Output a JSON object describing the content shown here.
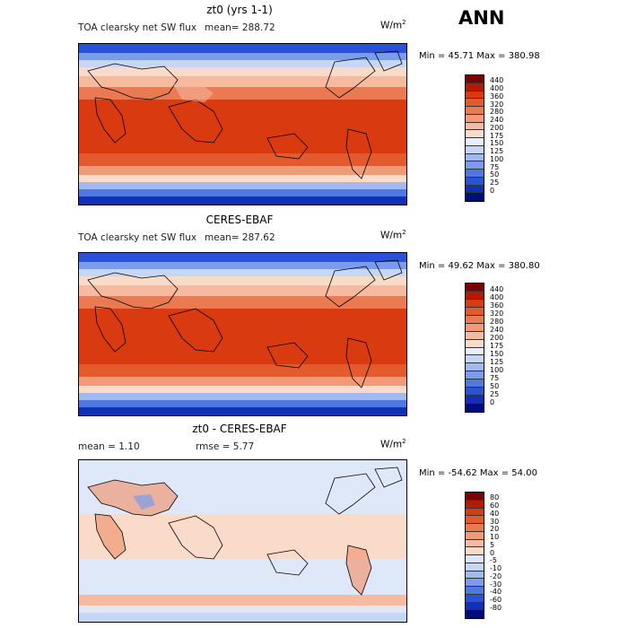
{
  "season": "ANN",
  "panels": [
    {
      "title": "zt0 (yrs 1-1)",
      "subtitle": "TOA clearsky net SW flux",
      "mean_text": "mean= 288.72",
      "units": "W/m",
      "units_sup": "2",
      "minmax": "Min =  45.71 Max = 380.98",
      "type": "field"
    },
    {
      "title": "CERES-EBAF",
      "subtitle": "TOA clearsky net SW flux",
      "mean_text": "mean= 287.62",
      "units": "W/m",
      "units_sup": "2",
      "minmax": "Min =  49.62 Max = 380.80",
      "type": "field"
    },
    {
      "title": "zt0 - CERES-EBAF",
      "subtitle": "mean =    1.10",
      "mean_text": "rmse =    5.77",
      "units": "W/m",
      "units_sup": "2",
      "minmax": "Min = -54.62 Max =  54.00",
      "type": "diff"
    }
  ],
  "colorbar_field": {
    "labels": [
      "440",
      "400",
      "360",
      "320",
      "280",
      "240",
      "200",
      "175",
      "150",
      "125",
      "100",
      "75",
      "50",
      "25",
      "0"
    ],
    "colors": [
      "#7a0000",
      "#b51a00",
      "#d93a10",
      "#e35a2c",
      "#ea7a52",
      "#f09a78",
      "#f5baa0",
      "#fadac8",
      "#e8eefb",
      "#c6d6f5",
      "#9fbaf0",
      "#7a9cea",
      "#4f78e2",
      "#2a52d6",
      "#1030b8",
      "#000c78"
    ]
  },
  "colorbar_diff": {
    "labels": [
      "80",
      "60",
      "40",
      "30",
      "20",
      "10",
      "5",
      "0",
      "-5",
      "-10",
      "-20",
      "-30",
      "-40",
      "-60",
      "-80"
    ],
    "colors": [
      "#7a0000",
      "#b51a00",
      "#d93a10",
      "#e35a2c",
      "#ea7a52",
      "#f09a78",
      "#f5baa0",
      "#fadac8",
      "#dce6f8",
      "#c6d6f5",
      "#9fbaf0",
      "#7a9cea",
      "#4f78e2",
      "#2a52d6",
      "#1030b8",
      "#000c78"
    ]
  }
}
